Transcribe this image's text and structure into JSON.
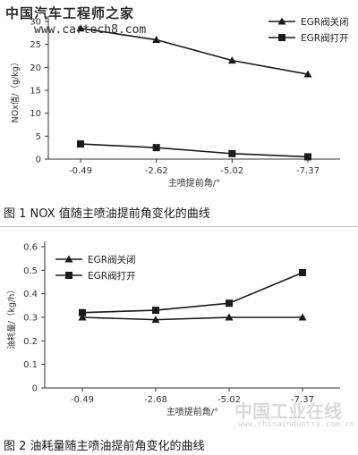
{
  "watermark": {
    "top_site_name": "中国汽车工程师之家",
    "top_url": "www.cartech8.com",
    "bottom_site_name": "中国工业在线",
    "bottom_url": "www.chinaindustry.com.cn"
  },
  "colors": {
    "line": "#1a1a1a",
    "axis": "#333333",
    "caption": "#1a1a1a"
  },
  "captions": {
    "fig1": "图 1  NOX 值随主喷油提前角变化的曲线",
    "fig2": "图 2  油耗量随主喷油提前角变化的曲线"
  },
  "chart_data": [
    {
      "type": "line",
      "title": "",
      "xlabel": "主喷提前角/°",
      "ylabel": "NOx值/（g/kg）",
      "categories": [
        "-0.49",
        "-2.62",
        "-5.02",
        "-7.37"
      ],
      "ylim": [
        0,
        30
      ],
      "yticks": [
        "0",
        "5",
        "10",
        "15",
        "20",
        "25",
        "30"
      ],
      "grid": false,
      "legend": "top-right",
      "series": [
        {
          "name": "EGR阀关闭",
          "marker": "triangle",
          "values": [
            28.5,
            26,
            21.5,
            18.5
          ]
        },
        {
          "name": "EGR阀打开",
          "marker": "square",
          "values": [
            3.3,
            2.5,
            1.2,
            0.5
          ]
        }
      ]
    },
    {
      "type": "line",
      "title": "",
      "xlabel": "主喷提前角/°",
      "ylabel": "油耗量/（kg/h）",
      "categories": [
        "-0.49",
        "-2.68",
        "-5.02",
        "-7.37"
      ],
      "ylim": [
        0,
        0.6
      ],
      "yticks": [
        "0",
        "0.1",
        "0.2",
        "0.3",
        "0.4",
        "0.5",
        "0.6"
      ],
      "grid": false,
      "legend": "top-left",
      "series": [
        {
          "name": "EGR阀关闭",
          "marker": "triangle",
          "values": [
            0.3,
            0.29,
            0.3,
            0.3
          ]
        },
        {
          "name": "EGR阀打开",
          "marker": "square",
          "values": [
            0.32,
            0.33,
            0.36,
            0.49
          ]
        }
      ]
    }
  ]
}
